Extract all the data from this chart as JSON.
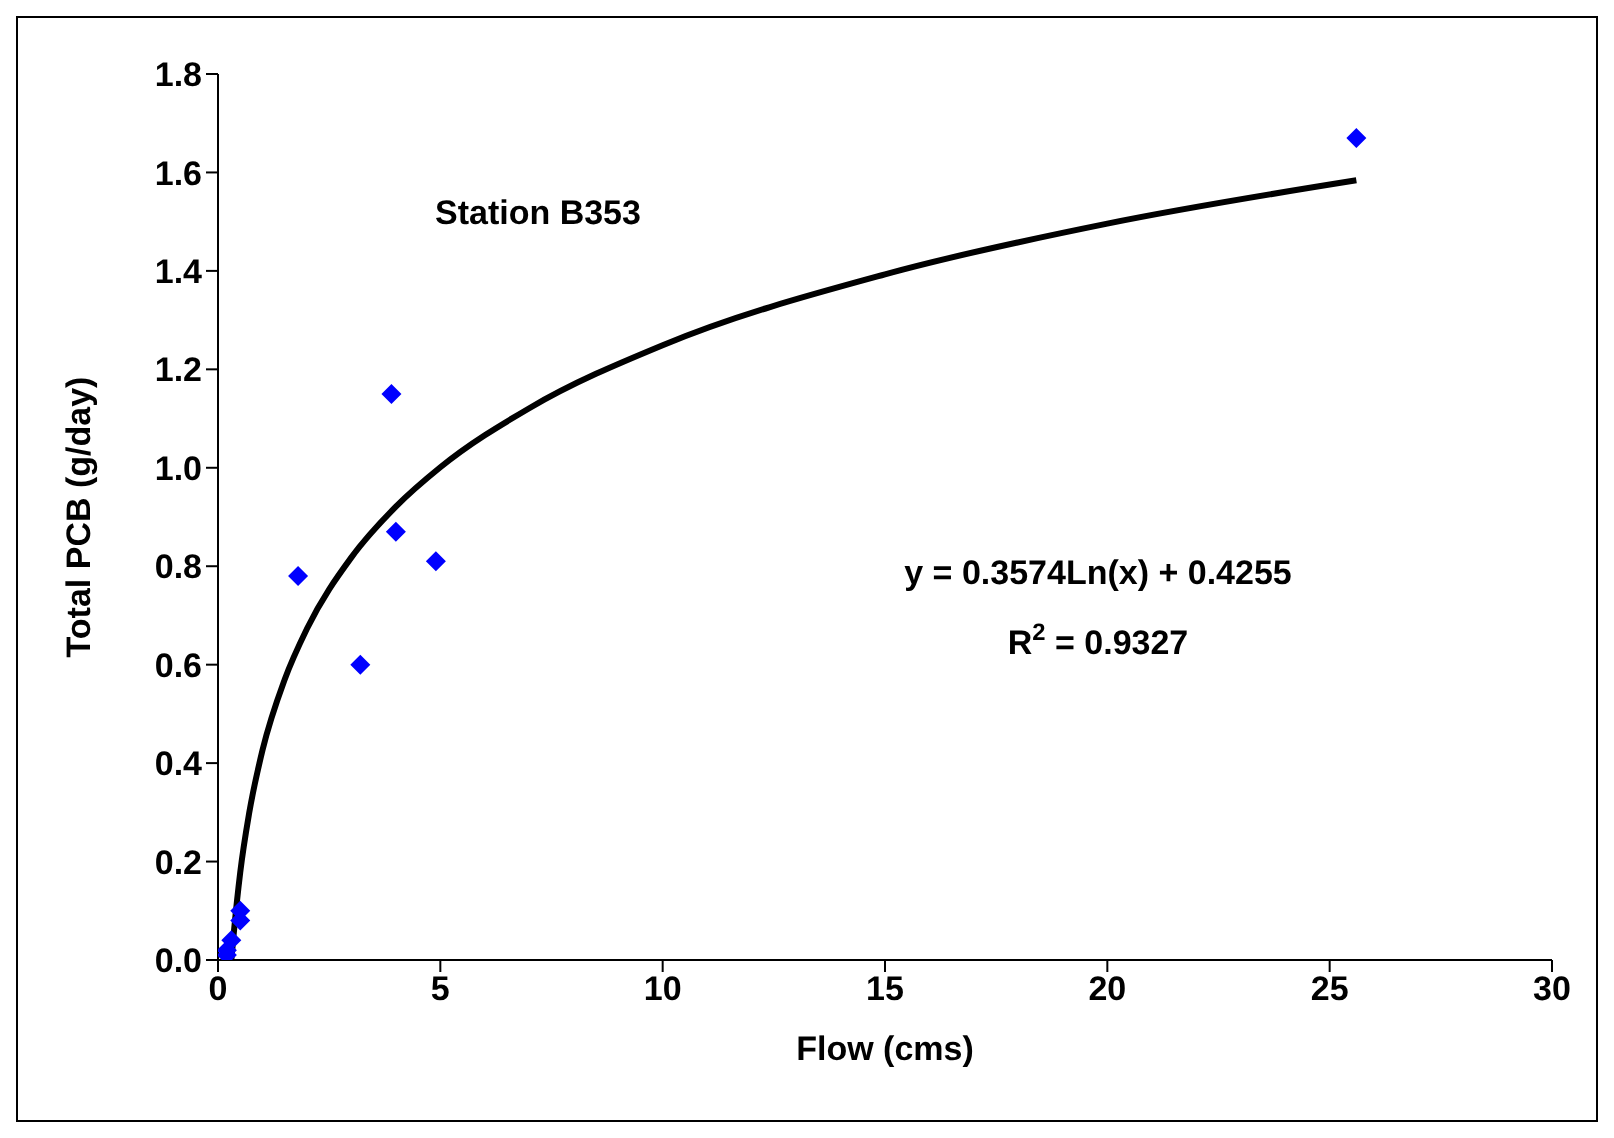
{
  "chart_data": {
    "type": "scatter",
    "xlabel": "Flow (cms)",
    "ylabel": "Total PCB (g/day)",
    "xlim": [
      0,
      30
    ],
    "xticks": [
      0,
      5,
      10,
      15,
      20,
      25,
      30
    ],
    "ylim": [
      0,
      1.8
    ],
    "yticks": [
      {
        "value": 0,
        "label": "0.0"
      },
      {
        "value": 0.2,
        "label": "0.2"
      },
      {
        "value": 0.4,
        "label": "0.4"
      },
      {
        "value": 0.6,
        "label": "0.6"
      },
      {
        "value": 0.8,
        "label": "0.8"
      },
      {
        "value": 1.0,
        "label": "1.0"
      },
      {
        "value": 1.2,
        "label": "1.2"
      },
      {
        "value": 1.4,
        "label": "1.4"
      },
      {
        "value": 1.6,
        "label": "1.6"
      },
      {
        "value": 1.8,
        "label": "1.8"
      }
    ],
    "grid": false,
    "legend": false,
    "marker": "diamond",
    "series": [
      {
        "color": "#0000ff",
        "x": [
          0.2,
          0.2,
          0.3,
          0.5,
          0.5,
          1.8,
          3.2,
          3.9,
          4.0,
          4.9,
          25.6
        ],
        "values": [
          0.01,
          0.02,
          0.04,
          0.08,
          0.1,
          0.78,
          0.6,
          1.15,
          0.87,
          0.81,
          1.67
        ]
      },
      {
        "type": "line",
        "color": "#000000",
        "marker": "none",
        "x": [
          0.3,
          0.35,
          0.5,
          0.7,
          1,
          1.5,
          2,
          3,
          4,
          5,
          7,
          10,
          15,
          20,
          25.6
        ],
        "values": [
          0.0,
          0.05,
          0.178,
          0.298,
          0.426,
          0.57,
          0.673,
          0.818,
          0.921,
          1.001,
          1.121,
          1.249,
          1.393,
          1.496,
          1.584
        ]
      }
    ],
    "annotations": [
      "Station B353",
      "y = 0.3574Ln(x) + 0.4255",
      "R$^{2}$ = 0.9327"
    ]
  }
}
